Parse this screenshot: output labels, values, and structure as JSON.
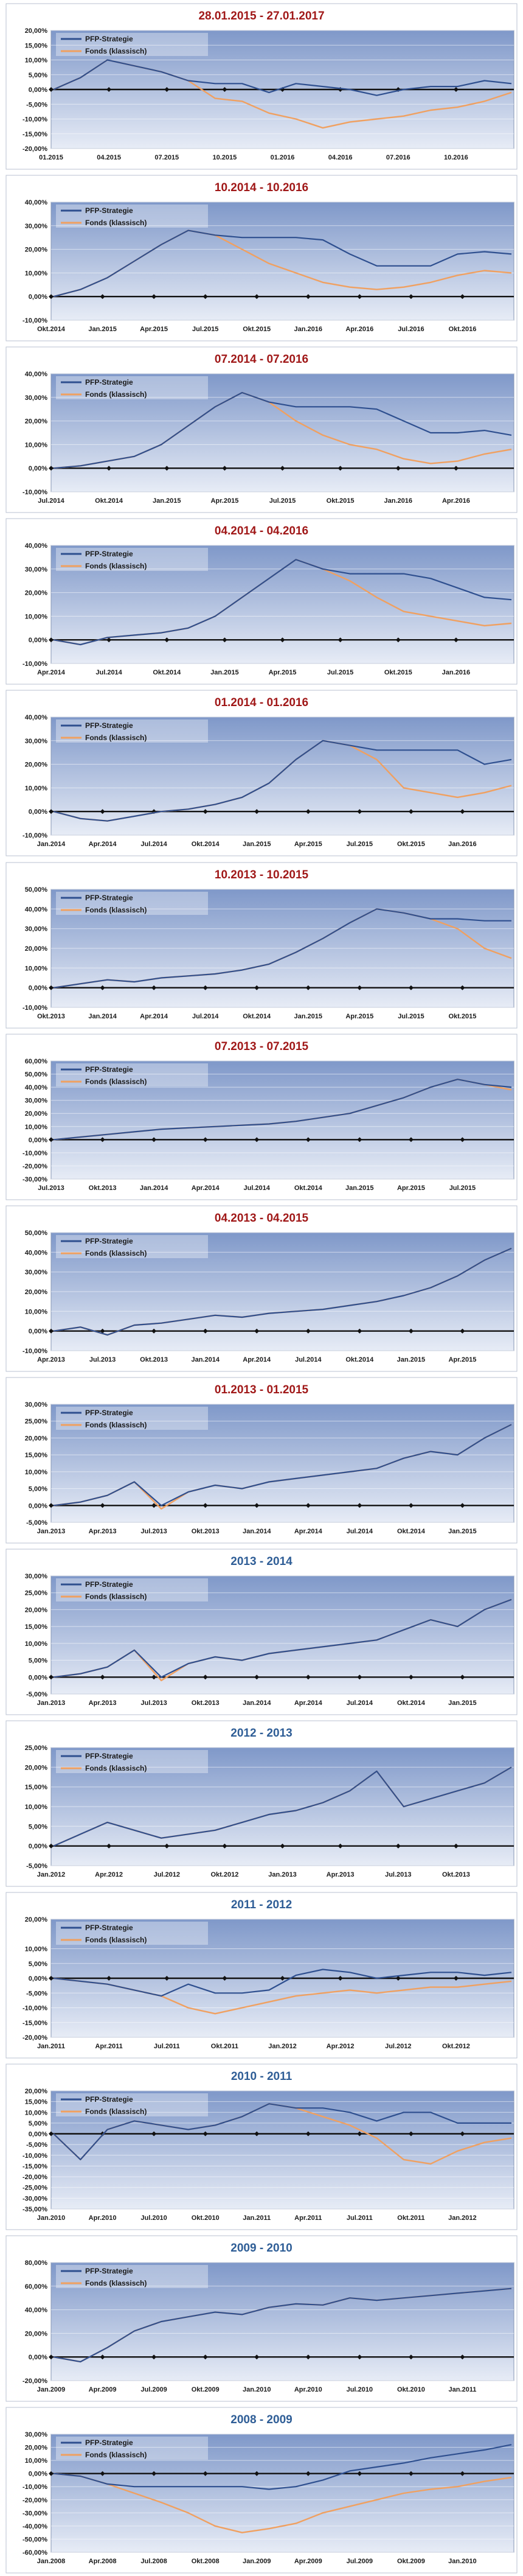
{
  "legend_labels": [
    "PFP-Strategie",
    "Fonds (klassisch)"
  ],
  "colors": {
    "strategy": "#2e4f8f",
    "fund": "#f0a060",
    "title_red": "#a01818",
    "title_blue": "#2e5d96",
    "plot_bg_top": "#7f98c9",
    "plot_bg_bottom": "#e7ecf6",
    "frame": "#b8c2d2"
  },
  "chart_data": [
    {
      "type": "line",
      "title": "28.01.2015 - 27.01.2017",
      "title_color": "red",
      "yticks": [
        "20,00%",
        "15,00%",
        "10,00%",
        "5,00%",
        "0,00%",
        "-5,00%",
        "-10,00%",
        "-15,00%",
        "-20,00%"
      ],
      "ylim": [
        -20,
        20
      ],
      "xticks": [
        "01.2015",
        "04.2015",
        "07.2015",
        "10.2015",
        "01.2016",
        "04.2016",
        "07.2016",
        "10.2016"
      ],
      "series": [
        {
          "name": "PFP-Strategie",
          "values": [
            0,
            4,
            10,
            8,
            6,
            3,
            2,
            2,
            -1,
            2,
            1,
            0,
            -2,
            0,
            1,
            1,
            3,
            2
          ]
        },
        {
          "name": "Fonds (klassisch)",
          "values": [
            0,
            4,
            10,
            8,
            6,
            3,
            -3,
            -4,
            -8,
            -10,
            -13,
            -11,
            -10,
            -9,
            -7,
            -6,
            -4,
            -1
          ]
        }
      ]
    },
    {
      "type": "line",
      "title": "10.2014 - 10.2016",
      "title_color": "red",
      "yticks": [
        "40,00%",
        "30,00%",
        "20,00%",
        "10,00%",
        "0,00%",
        "-10,00%"
      ],
      "ylim": [
        -10,
        40
      ],
      "xticks": [
        "Okt.2014",
        "Jan.2015",
        "Apr.2015",
        "Jul.2015",
        "Okt.2015",
        "Jan.2016",
        "Apr.2016",
        "Jul.2016",
        "Okt.2016"
      ],
      "series": [
        {
          "name": "PFP-Strategie",
          "values": [
            0,
            3,
            8,
            15,
            22,
            28,
            26,
            25,
            25,
            25,
            24,
            18,
            13,
            13,
            13,
            18,
            19,
            18
          ]
        },
        {
          "name": "Fonds (klassisch)",
          "values": [
            0,
            3,
            8,
            15,
            22,
            28,
            26,
            20,
            14,
            10,
            6,
            4,
            3,
            4,
            6,
            9,
            11,
            10
          ]
        }
      ]
    },
    {
      "type": "line",
      "title": "07.2014 - 07.2016",
      "title_color": "red",
      "yticks": [
        "40,00%",
        "30,00%",
        "20,00%",
        "10,00%",
        "0,00%",
        "-10,00%"
      ],
      "ylim": [
        -10,
        40
      ],
      "xticks": [
        "Jul.2014",
        "Okt.2014",
        "Jan.2015",
        "Apr.2015",
        "Jul.2015",
        "Okt.2015",
        "Jan.2016",
        "Apr.2016"
      ],
      "series": [
        {
          "name": "PFP-Strategie",
          "values": [
            0,
            1,
            3,
            5,
            10,
            18,
            26,
            32,
            28,
            26,
            26,
            26,
            25,
            20,
            15,
            15,
            16,
            14
          ]
        },
        {
          "name": "Fonds (klassisch)",
          "values": [
            0,
            1,
            3,
            5,
            10,
            18,
            26,
            32,
            28,
            20,
            14,
            10,
            8,
            4,
            2,
            3,
            6,
            8
          ]
        }
      ]
    },
    {
      "type": "line",
      "title": "04.2014 - 04.2016",
      "title_color": "red",
      "yticks": [
        "40,00%",
        "30,00%",
        "20,00%",
        "10,00%",
        "0,00%",
        "-10,00%"
      ],
      "ylim": [
        -10,
        40
      ],
      "xticks": [
        "Apr.2014",
        "Jul.2014",
        "Okt.2014",
        "Jan.2015",
        "Apr.2015",
        "Jul.2015",
        "Okt.2015",
        "Jan.2016"
      ],
      "series": [
        {
          "name": "PFP-Strategie",
          "values": [
            0,
            -2,
            1,
            2,
            3,
            5,
            10,
            18,
            26,
            34,
            30,
            28,
            28,
            28,
            26,
            22,
            18,
            17
          ]
        },
        {
          "name": "Fonds (klassisch)",
          "values": [
            0,
            -2,
            1,
            2,
            3,
            5,
            10,
            18,
            26,
            34,
            30,
            25,
            18,
            12,
            10,
            8,
            6,
            7
          ]
        }
      ]
    },
    {
      "type": "line",
      "title": "01.2014 - 01.2016",
      "title_color": "red",
      "yticks": [
        "40,00%",
        "30,00%",
        "20,00%",
        "10,00%",
        "0,00%",
        "-10,00%"
      ],
      "ylim": [
        -10,
        40
      ],
      "xticks": [
        "Jan.2014",
        "Apr.2014",
        "Jul.2014",
        "Okt.2014",
        "Jan.2015",
        "Apr.2015",
        "Jul.2015",
        "Okt.2015",
        "Jan.2016"
      ],
      "series": [
        {
          "name": "PFP-Strategie",
          "values": [
            0,
            -3,
            -4,
            -2,
            0,
            1,
            3,
            6,
            12,
            22,
            30,
            28,
            26,
            26,
            26,
            26,
            20,
            22
          ]
        },
        {
          "name": "Fonds (klassisch)",
          "values": [
            0,
            -3,
            -4,
            -2,
            0,
            1,
            3,
            6,
            12,
            22,
            30,
            28,
            22,
            10,
            8,
            6,
            8,
            11
          ]
        }
      ]
    },
    {
      "type": "line",
      "title": "10.2013 - 10.2015",
      "title_color": "red",
      "yticks": [
        "50,00%",
        "40,00%",
        "30,00%",
        "20,00%",
        "10,00%",
        "0,00%",
        "-10,00%"
      ],
      "ylim": [
        -10,
        50
      ],
      "xticks": [
        "Okt.2013",
        "Jan.2014",
        "Apr.2014",
        "Jul.2014",
        "Okt.2014",
        "Jan.2015",
        "Apr.2015",
        "Jul.2015",
        "Okt.2015"
      ],
      "series": [
        {
          "name": "PFP-Strategie",
          "values": [
            0,
            2,
            4,
            3,
            5,
            6,
            7,
            9,
            12,
            18,
            25,
            33,
            40,
            38,
            35,
            35,
            34,
            34
          ]
        },
        {
          "name": "Fonds (klassisch)",
          "values": [
            0,
            2,
            4,
            3,
            5,
            6,
            7,
            9,
            12,
            18,
            25,
            33,
            40,
            38,
            35,
            30,
            20,
            15
          ]
        }
      ]
    },
    {
      "type": "line",
      "title": "07.2013 - 07.2015",
      "title_color": "red",
      "yticks": [
        "60,00%",
        "50,00%",
        "40,00%",
        "30,00%",
        "20,00%",
        "10,00%",
        "0,00%",
        "-10,00%",
        "-20,00%",
        "-30,00%"
      ],
      "ylim": [
        -30,
        60
      ],
      "xticks": [
        "Jul.2013",
        "Okt.2013",
        "Jan.2014",
        "Apr.2014",
        "Jul.2014",
        "Okt.2014",
        "Jan.2015",
        "Apr.2015",
        "Jul.2015"
      ],
      "series": [
        {
          "name": "PFP-Strategie",
          "values": [
            0,
            2,
            4,
            6,
            8,
            9,
            10,
            11,
            12,
            14,
            17,
            20,
            26,
            32,
            40,
            46,
            42,
            40
          ]
        },
        {
          "name": "Fonds (klassisch)",
          "values": [
            0,
            2,
            4,
            6,
            8,
            9,
            10,
            11,
            12,
            14,
            17,
            20,
            26,
            32,
            40,
            46,
            42,
            38
          ]
        }
      ]
    },
    {
      "type": "line",
      "title": "04.2013 - 04.2015",
      "title_color": "red",
      "yticks": [
        "50,00%",
        "40,00%",
        "30,00%",
        "20,00%",
        "10,00%",
        "0,00%",
        "-10,00%"
      ],
      "ylim": [
        -10,
        50
      ],
      "xticks": [
        "Apr.2013",
        "Jul.2013",
        "Okt.2013",
        "Jan.2014",
        "Apr.2014",
        "Jul.2014",
        "Okt.2014",
        "Jan.2015",
        "Apr.2015"
      ],
      "series": [
        {
          "name": "PFP-Strategie",
          "values": [
            0,
            2,
            -2,
            3,
            4,
            6,
            8,
            7,
            9,
            10,
            11,
            13,
            15,
            18,
            22,
            28,
            36,
            42
          ]
        },
        {
          "name": "Fonds (klassisch)",
          "values": [
            0,
            2,
            -2,
            3,
            4,
            6,
            8,
            7,
            9,
            10,
            11,
            13,
            15,
            18,
            22,
            28,
            36,
            42
          ]
        }
      ]
    },
    {
      "type": "line",
      "title": "01.2013 - 01.2015",
      "title_color": "red",
      "yticks": [
        "30,00%",
        "25,00%",
        "20,00%",
        "15,00%",
        "10,00%",
        "5,00%",
        "0,00%",
        "-5,00%"
      ],
      "ylim": [
        -5,
        30
      ],
      "xticks": [
        "Jan.2013",
        "Apr.2013",
        "Jul.2013",
        "Okt.2013",
        "Jan.2014",
        "Apr.2014",
        "Jul.2014",
        "Okt.2014",
        "Jan.2015"
      ],
      "series": [
        {
          "name": "PFP-Strategie",
          "values": [
            0,
            1,
            3,
            7,
            0,
            4,
            6,
            5,
            7,
            8,
            9,
            10,
            11,
            14,
            16,
            15,
            20,
            24
          ]
        },
        {
          "name": "Fonds (klassisch)",
          "values": [
            0,
            1,
            3,
            7,
            -1,
            4,
            6,
            5,
            7,
            8,
            9,
            10,
            11,
            14,
            16,
            15,
            20,
            24
          ]
        }
      ]
    },
    {
      "type": "line",
      "title": "2013 - 2014",
      "title_color": "blue",
      "yticks": [
        "30,00%",
        "25,00%",
        "20,00%",
        "15,00%",
        "10,00%",
        "5,00%",
        "0,00%",
        "-5,00%"
      ],
      "ylim": [
        -5,
        30
      ],
      "xticks": [
        "Jan.2013",
        "Apr.2013",
        "Jul.2013",
        "Okt.2013",
        "Jan.2014",
        "Apr.2014",
        "Jul.2014",
        "Okt.2014",
        "Jan.2015"
      ],
      "series": [
        {
          "name": "PFP-Strategie",
          "values": [
            0,
            1,
            3,
            8,
            0,
            4,
            6,
            5,
            7,
            8,
            9,
            10,
            11,
            14,
            17,
            15,
            20,
            23
          ]
        },
        {
          "name": "Fonds (klassisch)",
          "values": [
            0,
            1,
            3,
            8,
            -1,
            4,
            6,
            5,
            7,
            8,
            9,
            10,
            11,
            14,
            17,
            15,
            20,
            23
          ]
        }
      ]
    },
    {
      "type": "line",
      "title": "2012 - 2013",
      "title_color": "blue",
      "yticks": [
        "25,00%",
        "20,00%",
        "15,00%",
        "10,00%",
        "5,00%",
        "0,00%",
        "-5,00%"
      ],
      "ylim": [
        -5,
        25
      ],
      "xticks": [
        "Jan.2012",
        "Apr.2012",
        "Jul.2012",
        "Okt.2012",
        "Jan.2013",
        "Apr.2013",
        "Jul.2013",
        "Okt.2013"
      ],
      "series": [
        {
          "name": "PFP-Strategie",
          "values": [
            0,
            3,
            6,
            4,
            2,
            3,
            4,
            6,
            8,
            9,
            11,
            14,
            19,
            10,
            12,
            14,
            16,
            20
          ]
        },
        {
          "name": "Fonds (klassisch)",
          "values": [
            0,
            3,
            6,
            4,
            2,
            3,
            4,
            6,
            8,
            9,
            11,
            14,
            19,
            10,
            12,
            14,
            16,
            20
          ]
        }
      ]
    },
    {
      "type": "line",
      "title": "2011 - 2012",
      "title_color": "blue",
      "yticks": [
        "20,00%",
        "10,00%",
        "5,00%",
        "0,00%",
        "-5,00%",
        "-10,00%",
        "-15,00%",
        "-20,00%"
      ],
      "ylim": [
        -20,
        20
      ],
      "xticks": [
        "Jan.2011",
        "Apr.2011",
        "Jul.2011",
        "Okt.2011",
        "Jan.2012",
        "Apr.2012",
        "Jul.2012",
        "Okt.2012"
      ],
      "series": [
        {
          "name": "PFP-Strategie",
          "values": [
            0,
            -1,
            -2,
            -4,
            -6,
            -2,
            -5,
            -5,
            -4,
            1,
            3,
            2,
            0,
            1,
            2,
            2,
            1,
            2
          ]
        },
        {
          "name": "Fonds (klassisch)",
          "values": [
            0,
            -1,
            -2,
            -4,
            -6,
            -10,
            -12,
            -10,
            -8,
            -6,
            -5,
            -4,
            -5,
            -4,
            -3,
            -3,
            -2,
            -1
          ]
        }
      ]
    },
    {
      "type": "line",
      "title": "2010 - 2011",
      "title_color": "blue",
      "yticks": [
        "20,00%",
        "15,00%",
        "10,00%",
        "5,00%",
        "0,00%",
        "-5,00%",
        "-10,00%",
        "-15,00%",
        "-20,00%",
        "-25,00%",
        "-30,00%",
        "-35,00%"
      ],
      "ylim": [
        -35,
        20
      ],
      "xticks": [
        "Jan.2010",
        "Apr.2010",
        "Jul.2010",
        "Okt.2010",
        "Jan.2011",
        "Apr.2011",
        "Jul.2011",
        "Okt.2011",
        "Jan.2012"
      ],
      "series": [
        {
          "name": "PFP-Strategie",
          "values": [
            0,
            -12,
            2,
            6,
            4,
            2,
            4,
            8,
            14,
            12,
            12,
            10,
            6,
            10,
            10,
            5,
            5,
            5
          ]
        },
        {
          "name": "Fonds (klassisch)",
          "values": [
            0,
            -12,
            2,
            6,
            4,
            2,
            4,
            8,
            14,
            12,
            8,
            4,
            -2,
            -12,
            -14,
            -8,
            -4,
            -2
          ]
        }
      ]
    },
    {
      "type": "line",
      "title": "2009 - 2010",
      "title_color": "blue",
      "yticks": [
        "80,00%",
        "60,00%",
        "40,00%",
        "20,00%",
        "0,00%",
        "-20,00%"
      ],
      "ylim": [
        -20,
        80
      ],
      "xticks": [
        "Jan.2009",
        "Apr.2009",
        "Jul.2009",
        "Okt.2009",
        "Jan.2010",
        "Apr.2010",
        "Jul.2010",
        "Okt.2010",
        "Jan.2011"
      ],
      "series": [
        {
          "name": "PFP-Strategie",
          "values": [
            0,
            -4,
            8,
            22,
            30,
            34,
            38,
            36,
            42,
            45,
            44,
            50,
            48,
            50,
            52,
            54,
            56,
            58
          ]
        },
        {
          "name": "Fonds (klassisch)",
          "values": [
            0,
            -4,
            8,
            22,
            30,
            34,
            38,
            36,
            42,
            45,
            44,
            50,
            48,
            50,
            52,
            54,
            56,
            58
          ]
        }
      ]
    },
    {
      "type": "line",
      "title": "2008 - 2009",
      "title_color": "blue",
      "yticks": [
        "30,00%",
        "20,00%",
        "10,00%",
        "0,00%",
        "-10,00%",
        "-20,00%",
        "-30,00%",
        "-40,00%",
        "-50,00%",
        "-60,00%"
      ],
      "ylim": [
        -60,
        30
      ],
      "xticks": [
        "Jan.2008",
        "Apr.2008",
        "Jul.2008",
        "Okt.2008",
        "Jan.2009",
        "Apr.2009",
        "Jul.2009",
        "Okt.2009",
        "Jan.2010"
      ],
      "series": [
        {
          "name": "PFP-Strategie",
          "values": [
            0,
            -2,
            -8,
            -10,
            -10,
            -10,
            -10,
            -10,
            -12,
            -10,
            -5,
            2,
            5,
            8,
            12,
            15,
            18,
            22
          ]
        },
        {
          "name": "Fonds (klassisch)",
          "values": [
            0,
            -2,
            -8,
            -15,
            -22,
            -30,
            -40,
            -45,
            -42,
            -38,
            -30,
            -25,
            -20,
            -15,
            -12,
            -10,
            -6,
            -3
          ]
        }
      ]
    }
  ]
}
